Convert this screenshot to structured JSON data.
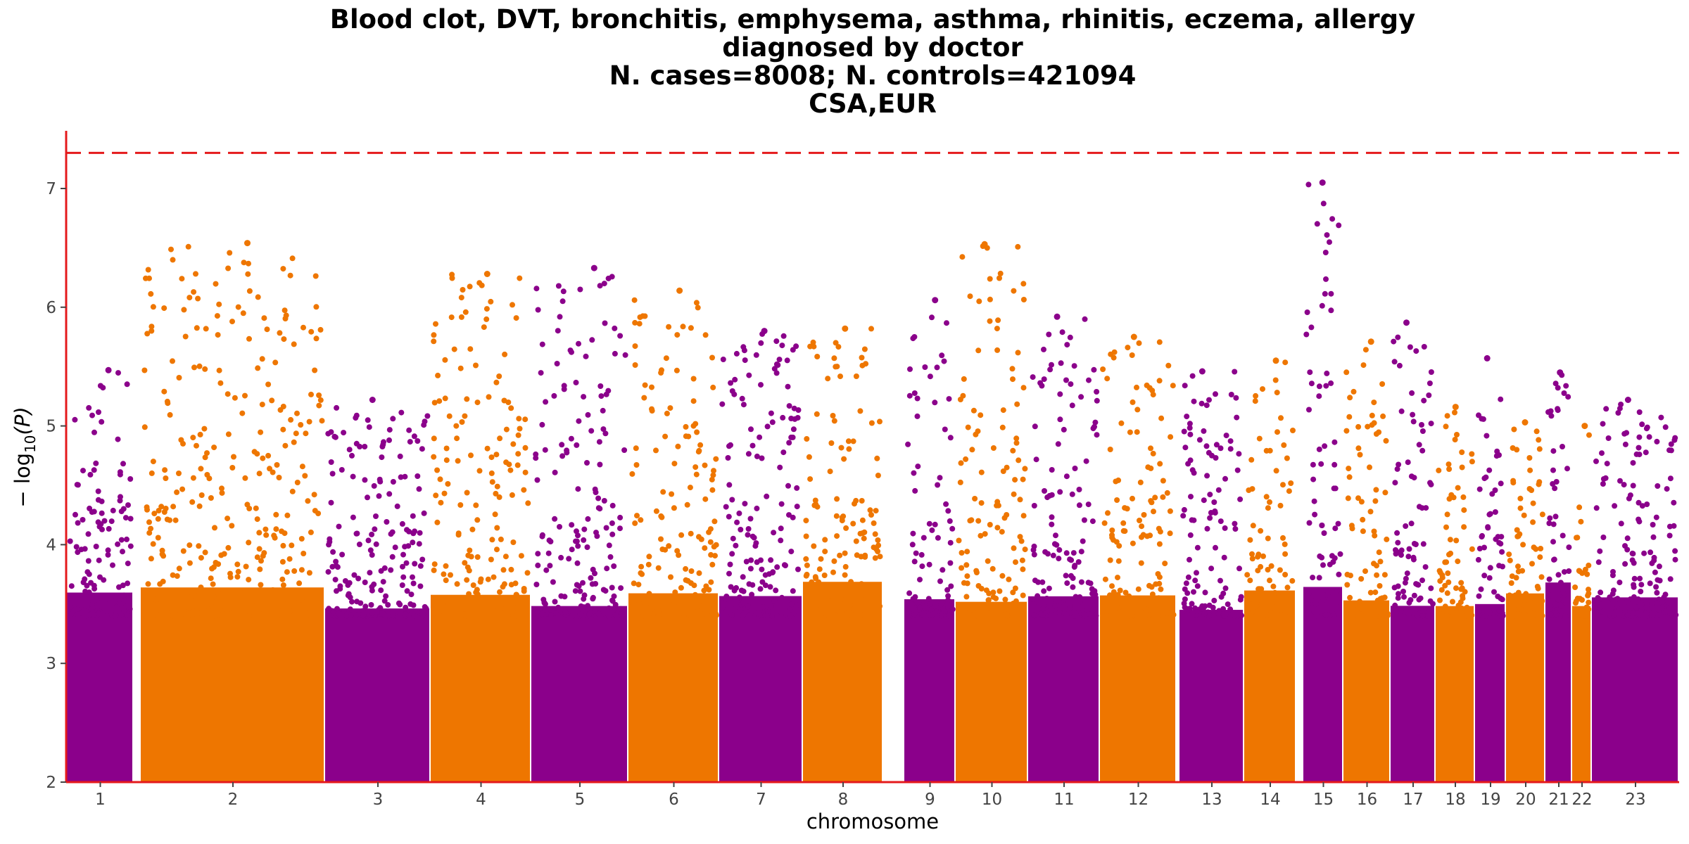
{
  "chart_data": {
    "type": "scatter",
    "subtype": "manhattan",
    "title_lines": [
      "Blood clot, DVT, bronchitis, emphysema, asthma, rhinitis, eczema, allergy",
      "diagnosed by doctor",
      "N. cases=8008; N. controls=421094",
      "CSA,EUR"
    ],
    "xlabel": "chromosome",
    "ylabel_parts": {
      "prefix": "− log",
      "subscript": "10",
      "suffix": "(P)"
    },
    "ylim": [
      2,
      7.5
    ],
    "yticks": [
      "2",
      "3",
      "4",
      "5",
      "6",
      "7"
    ],
    "significance_threshold": 7.3,
    "grid": false,
    "colors": {
      "odd_chromosome": "#8B008B",
      "even_chromosome": "#EE7600",
      "threshold_line": "#E41A1C",
      "axis": "#E41A1C"
    },
    "chromosomes": [
      {
        "label": "1",
        "peak": 5.47
      },
      {
        "label": "2",
        "peak": 6.54
      },
      {
        "label": "3",
        "peak": 5.22
      },
      {
        "label": "4",
        "peak": 6.28
      },
      {
        "label": "5",
        "peak": 6.33
      },
      {
        "label": "6",
        "peak": 6.14
      },
      {
        "label": "7",
        "peak": 5.8
      },
      {
        "label": "8",
        "peak": 5.82
      },
      {
        "label": "9",
        "peak": 6.06
      },
      {
        "label": "10",
        "peak": 6.53
      },
      {
        "label": "11",
        "peak": 5.92
      },
      {
        "label": "12",
        "peak": 5.75
      },
      {
        "label": "13",
        "peak": 5.46
      },
      {
        "label": "14",
        "peak": 5.55
      },
      {
        "label": "15",
        "peak": 7.05
      },
      {
        "label": "16",
        "peak": 5.71
      },
      {
        "label": "17",
        "peak": 5.87
      },
      {
        "label": "18",
        "peak": 5.16
      },
      {
        "label": "19",
        "peak": 5.57
      },
      {
        "label": "20",
        "peak": 5.03
      },
      {
        "label": "21",
        "peak": 5.45
      },
      {
        "label": "22",
        "peak": 5.0
      },
      {
        "label": "23",
        "peak": 5.22
      }
    ]
  }
}
